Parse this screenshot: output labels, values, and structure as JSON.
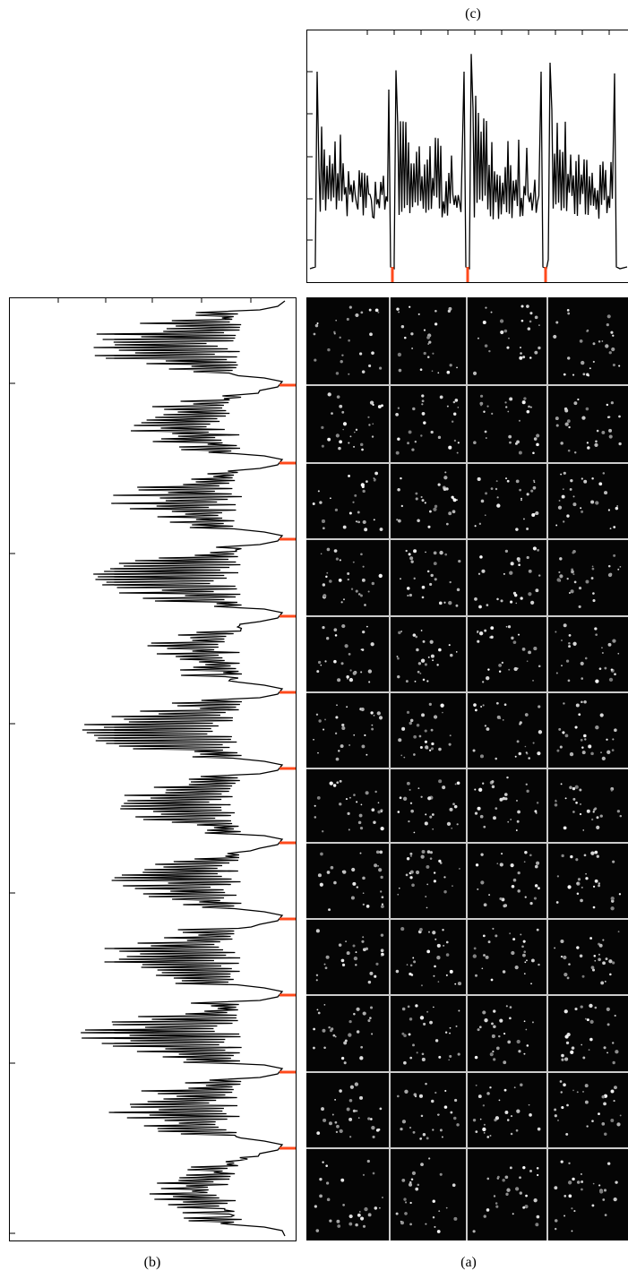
{
  "panels": {
    "c": {
      "label": "(c)"
    },
    "b": {
      "label": "(b)"
    },
    "a": {
      "label": "(a)"
    }
  }
}
